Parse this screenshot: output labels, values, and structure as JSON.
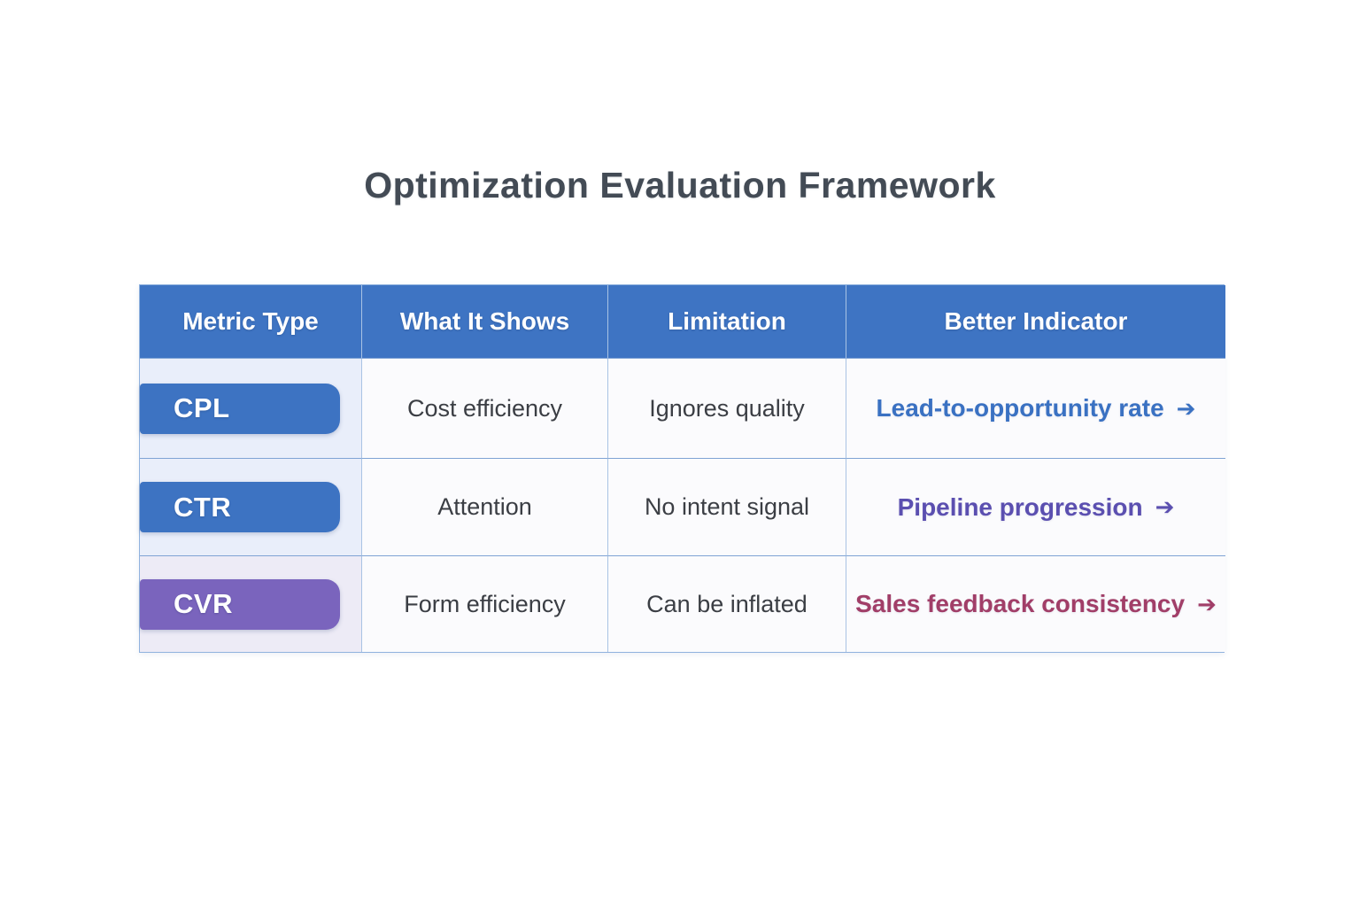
{
  "title": "Optimization Evaluation Framework",
  "table": {
    "headers": [
      "Metric Type",
      "What It Shows",
      "Limitation",
      "Better Indicator"
    ],
    "rows": [
      {
        "metric": "CPL",
        "shows": "Cost efficiency",
        "limitation": "Ignores quality",
        "better_indicator": "Lead-to-opportunity rate",
        "arrow": "➔"
      },
      {
        "metric": "CTR",
        "shows": "Attention",
        "limitation": "No intent signal",
        "better_indicator": "Pipeline progression",
        "arrow": "➔"
      },
      {
        "metric": "CVR",
        "shows": "Form efficiency",
        "limitation": "Can be inflated",
        "better_indicator": "Sales feedback consistency",
        "arrow": "➔"
      }
    ],
    "colors": {
      "header_bg": "#3e74c3",
      "header_text": "#ffffff",
      "badge_blue": "#3d73c2",
      "badge_purple": "#7a64bd",
      "metric_cell_blue_bg": "#e9eefa",
      "metric_cell_purple_bg": "#edebf6",
      "body_cell_bg": "#fbfbfd",
      "body_text": "#3b3e44",
      "better_blue": "#3a71c2",
      "better_purple": "#5b4fb0",
      "better_maroon": "#a13e68",
      "border": "#90b2de",
      "title_text": "#434b55"
    }
  }
}
